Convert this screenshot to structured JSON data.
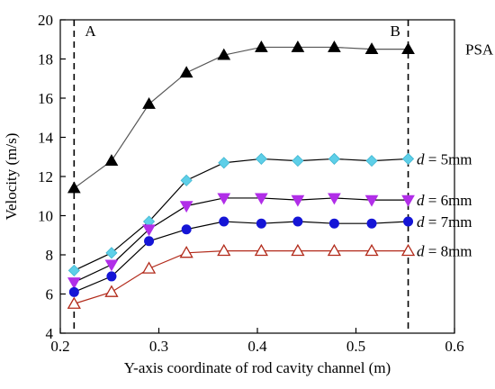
{
  "chart_data": {
    "type": "line",
    "title": "",
    "xlabel": "Y-axis coordinate of rod cavity channel (m)",
    "ylabel": "Velocity (m/s)",
    "xlim": [
      0.2,
      0.6
    ],
    "ylim": [
      4,
      20
    ],
    "x_ticks": [
      "0.2",
      "0.3",
      "0.4",
      "0.5",
      "0.6"
    ],
    "y_ticks": [
      "4",
      "6",
      "8",
      "10",
      "12",
      "14",
      "16",
      "18",
      "20"
    ],
    "grid": false,
    "markers": [
      {
        "label": "A",
        "x": 0.214
      },
      {
        "label": "B",
        "x": 0.553
      }
    ],
    "x": [
      0.214,
      0.252,
      0.29,
      0.328,
      0.366,
      0.404,
      0.441,
      0.478,
      0.516,
      0.553
    ],
    "series": [
      {
        "key": "psa",
        "label_parts": [
          "PSA"
        ],
        "marker": "triangle-filled",
        "color": "#000000",
        "line_color": "#555555",
        "values": [
          11.4,
          12.8,
          15.7,
          17.3,
          18.2,
          18.6,
          18.6,
          18.6,
          18.5,
          18.5
        ]
      },
      {
        "key": "d5",
        "label_parts": [
          "d",
          " = 5mm"
        ],
        "marker": "diamond-sparkle",
        "color": "#5ecfe8",
        "line_color": "#000000",
        "values": [
          7.2,
          8.1,
          9.7,
          11.8,
          12.7,
          12.9,
          12.8,
          12.9,
          12.8,
          12.9
        ]
      },
      {
        "key": "d6",
        "label_parts": [
          "d",
          " = 6mm"
        ],
        "marker": "triangle-down-filled",
        "color": "#b12ee8",
        "line_color": "#000000",
        "values": [
          6.6,
          7.5,
          9.3,
          10.5,
          10.9,
          10.9,
          10.8,
          10.9,
          10.8,
          10.8
        ]
      },
      {
        "key": "d7",
        "label_parts": [
          "d",
          " = 7mm"
        ],
        "marker": "circle-filled",
        "color": "#1515d6",
        "line_color": "#000000",
        "values": [
          6.1,
          6.9,
          8.7,
          9.3,
          9.7,
          9.6,
          9.7,
          9.6,
          9.6,
          9.7
        ]
      },
      {
        "key": "d8",
        "label_parts": [
          "d",
          " = 8mm"
        ],
        "marker": "triangle-open",
        "color": "#b22a1a",
        "line_color": "#b22a1a",
        "values": [
          5.5,
          6.1,
          7.3,
          8.1,
          8.2,
          8.2,
          8.2,
          8.2,
          8.2,
          8.2
        ]
      }
    ]
  }
}
